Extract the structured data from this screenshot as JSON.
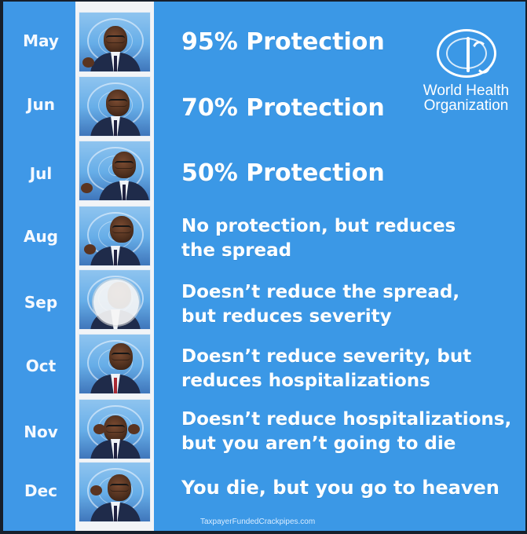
{
  "poster": {
    "months": [
      "May",
      "Jun",
      "Jul",
      "Aug",
      "Sep",
      "Oct",
      "Nov",
      "Dec"
    ],
    "statements": [
      "95% Protection",
      "70% Protection",
      "50% Protection",
      "No protection, but reduces\nthe spread",
      "Doesn’t reduce the spread,\nbut reduces severity",
      "Doesn’t reduce severity, but\nreduces hospitalizations",
      "Doesn’t reduce hospitalizations,\nbut you aren’t going to die",
      "You die, but you go to heaven"
    ],
    "logo_text": "World Health\nOrganization",
    "watermark": "TaxpayerFundedCrackpipes.com"
  },
  "colors": {
    "poster_blue": "#3b98e6",
    "text": "#ffffff",
    "photo_strip": "#f2f4f7",
    "dark_border": "#171f2b"
  },
  "icons": {
    "logo": "who-logo-icon",
    "video_overlay": "play-overlay-icon"
  }
}
